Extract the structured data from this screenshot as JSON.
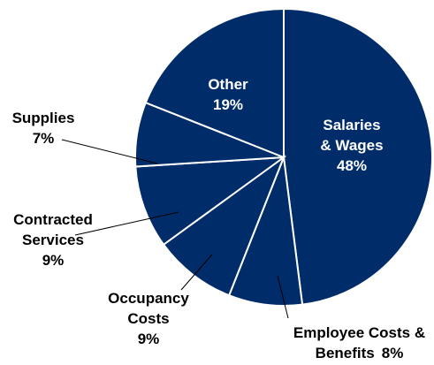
{
  "chart_data": {
    "type": "pie",
    "categories": [
      "Salaries & Wages",
      "Employee Costs & Benefits",
      "Occupancy Costs",
      "Contracted Services",
      "Supplies",
      "Other"
    ],
    "values": [
      48,
      8,
      9,
      9,
      7,
      19
    ],
    "value_labels": [
      "48%",
      "8%",
      "9%",
      "9%",
      "7%",
      "19%"
    ],
    "color": "#002d6a"
  }
}
